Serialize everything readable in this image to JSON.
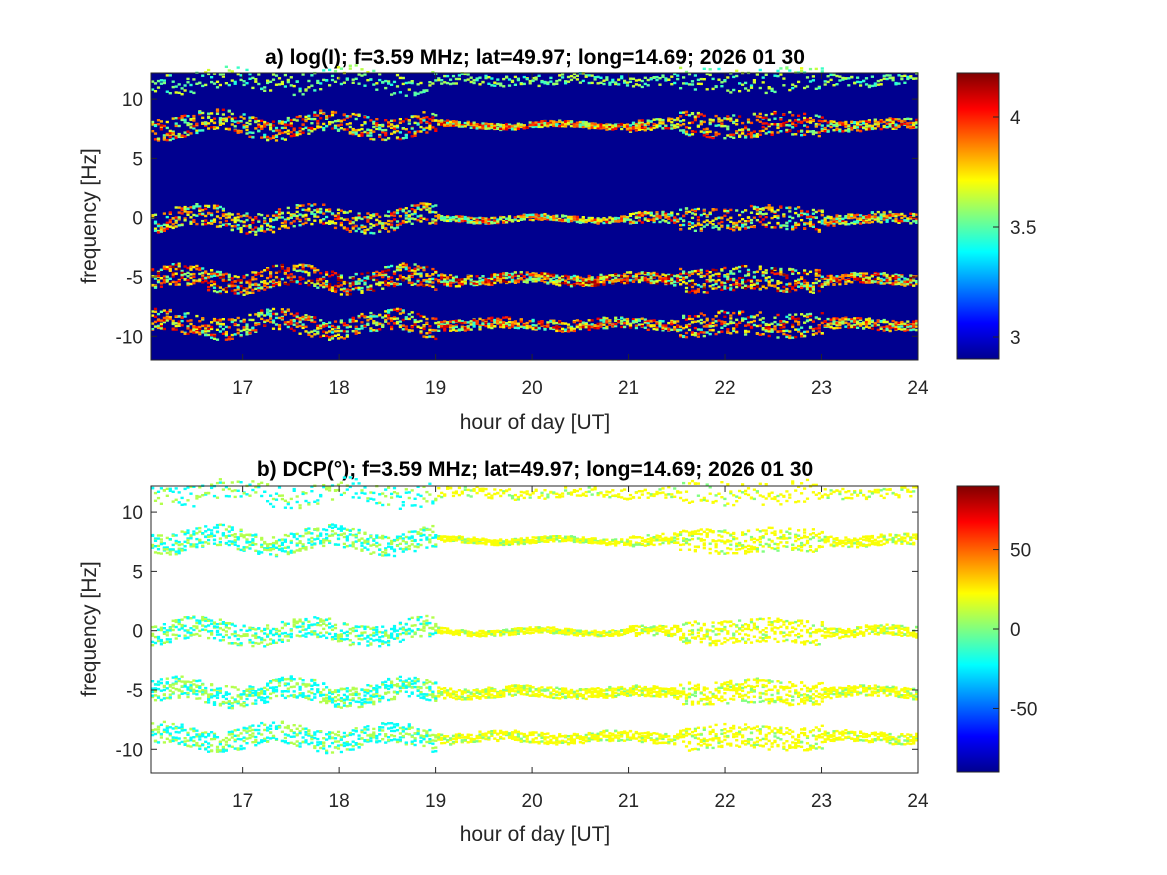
{
  "chart_data": [
    {
      "type": "heatmap",
      "title": "a) log(I); f=3.59 MHz;  lat=49.97; long=14.69; 2026 01 30",
      "xlabel": "hour of day [UT]",
      "ylabel": "frequency [Hz]",
      "xlim": [
        16.05,
        24.0
      ],
      "ylim": [
        -12.0,
        12.2
      ],
      "xticks": [
        "17",
        "18",
        "19",
        "20",
        "21",
        "22",
        "23",
        "24"
      ],
      "yticks": [
        "10",
        "5",
        "0",
        "-5",
        "-10"
      ],
      "colorbar": {
        "range": [
          2.9,
          4.2
        ],
        "ticks": [
          "4",
          "3.5",
          "3"
        ],
        "colormap": "jet"
      },
      "background": "#00008f",
      "grid": false,
      "bands": [
        {
          "center_hz": 11.6,
          "intensity": 0.35
        },
        {
          "center_hz": 7.8,
          "intensity": 0.9
        },
        {
          "center_hz": -0.1,
          "intensity": 0.8
        },
        {
          "center_hz": -5.2,
          "intensity": 1.0
        },
        {
          "center_hz": -9.0,
          "intensity": 0.9
        }
      ]
    },
    {
      "type": "heatmap",
      "title": "b) DCP(°); f=3.59 MHz;  lat=49.97; long=14.69; 2026 01 30",
      "xlabel": "hour of day [UT]",
      "ylabel": "frequency [Hz]",
      "xlim": [
        16.05,
        24.0
      ],
      "ylim": [
        -12.0,
        12.2
      ],
      "xticks": [
        "17",
        "18",
        "19",
        "20",
        "21",
        "22",
        "23",
        "24"
      ],
      "yticks": [
        "10",
        "5",
        "0",
        "-5",
        "-10"
      ],
      "colorbar": {
        "range": [
          -90,
          90
        ],
        "ticks": [
          "50",
          "0",
          "-50"
        ],
        "colormap": "jet"
      },
      "background": "#ffffff",
      "grid": false,
      "bands": [
        {
          "center_hz": 11.6,
          "intensity": 0.35
        },
        {
          "center_hz": 7.6,
          "intensity": 0.8
        },
        {
          "center_hz": -0.1,
          "intensity": 0.8
        },
        {
          "center_hz": -5.2,
          "intensity": 1.0
        },
        {
          "center_hz": -9.0,
          "intensity": 0.9
        }
      ]
    }
  ]
}
